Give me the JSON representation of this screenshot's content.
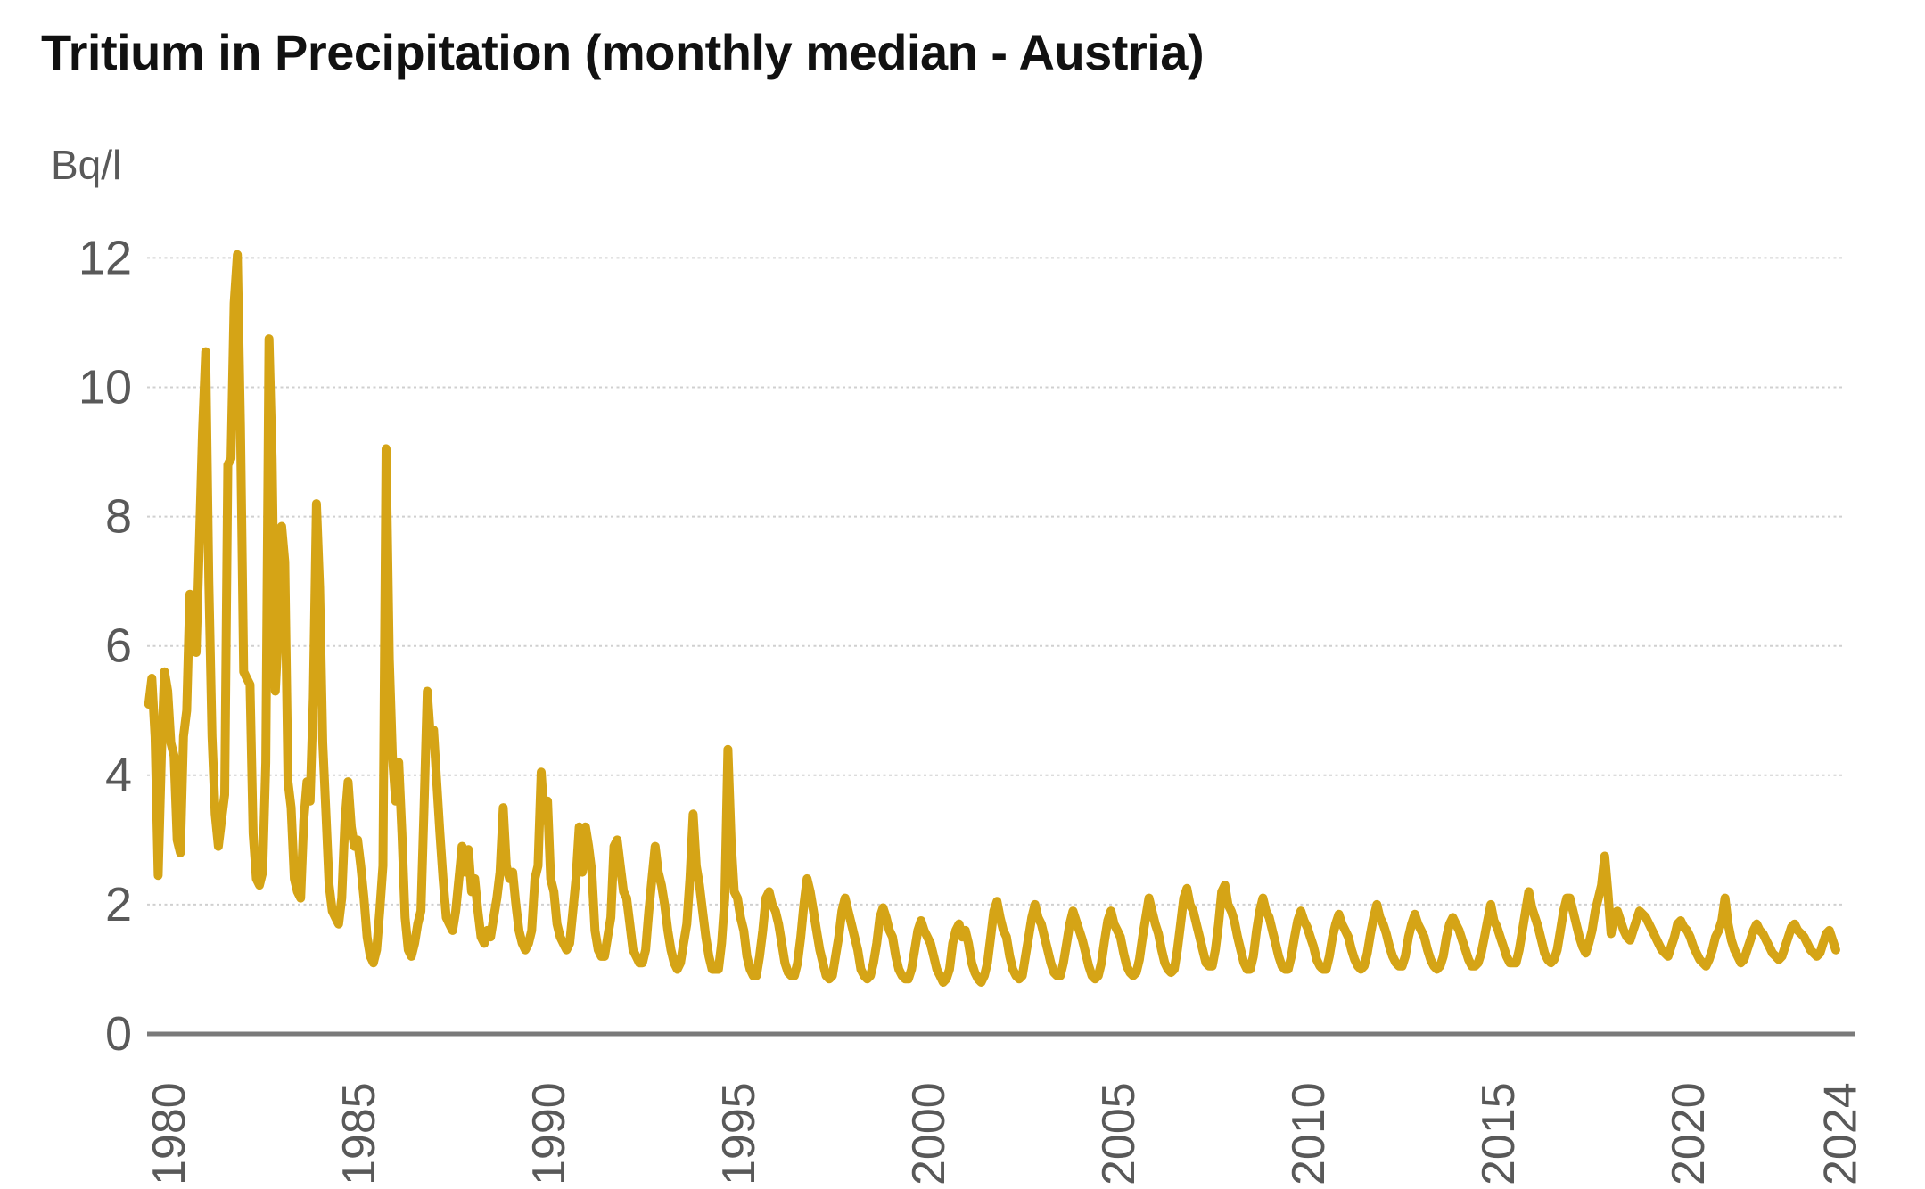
{
  "chart_data": {
    "type": "line",
    "title": "Tritium in Precipitation (monthly median - Austria)",
    "ylabel": "Bq/l",
    "xlabel": "",
    "legend": "none",
    "grid": "dotted horizontal gridlines",
    "x_tick_labels": [
      "1980",
      "1985",
      "1990",
      "1995",
      "2000",
      "2005",
      "2010",
      "2015",
      "2020",
      "2024"
    ],
    "y_tick_labels": [
      "0",
      "2",
      "4",
      "6",
      "8",
      "10",
      "12"
    ],
    "y_ticks": [
      0,
      2,
      4,
      6,
      8,
      10,
      12
    ],
    "ylim": [
      0,
      12.5
    ],
    "x_range": [
      "1980-01",
      "2024-06"
    ],
    "colors": {
      "line": "#D5A416",
      "grid": "#D0D0D0",
      "axis": "#7A7A7A",
      "tick_text": "#595959",
      "title_text": "#111111"
    },
    "series": [
      {
        "name": "Tritium monthly median (Bq/l)",
        "start_year": 1980,
        "values_by_year": {
          "1980": [
            5.1,
            5.5,
            4.6,
            2.45,
            4.3,
            5.6,
            5.3,
            4.5,
            4.3,
            3.0,
            2.8,
            4.6
          ],
          "1981": [
            5.0,
            6.8,
            6.6,
            5.9,
            7.6,
            9.3,
            10.55,
            7.0,
            4.6,
            3.4,
            2.9,
            3.3
          ],
          "1982": [
            3.7,
            8.8,
            8.9,
            11.3,
            12.05,
            9.4,
            5.6,
            5.5,
            5.4,
            3.1,
            2.4,
            2.3
          ],
          "1983": [
            2.5,
            4.2,
            10.75,
            8.9,
            5.3,
            6.3,
            7.85,
            7.3,
            3.9,
            3.5,
            2.4,
            2.2
          ],
          "1984": [
            2.1,
            3.3,
            3.9,
            3.6,
            5.2,
            8.2,
            6.9,
            4.5,
            3.4,
            2.3,
            1.9,
            1.8
          ],
          "1985": [
            1.7,
            2.1,
            3.3,
            3.9,
            3.2,
            2.9,
            3.0,
            2.6,
            2.1,
            1.5,
            1.2,
            1.1
          ],
          "1986": [
            1.3,
            1.9,
            2.6,
            9.05,
            5.8,
            4.3,
            3.6,
            4.2,
            3.1,
            1.8,
            1.3,
            1.2
          ],
          "1987": [
            1.4,
            1.7,
            1.9,
            3.5,
            5.3,
            4.6,
            4.7,
            3.9,
            3.1,
            2.4,
            1.8,
            1.7
          ],
          "1988": [
            1.6,
            1.9,
            2.4,
            2.9,
            2.5,
            2.85,
            2.2,
            2.4,
            1.9,
            1.5,
            1.4,
            1.6
          ],
          "1989": [
            1.5,
            1.8,
            2.1,
            2.5,
            3.5,
            2.6,
            2.4,
            2.5,
            2.0,
            1.6,
            1.4,
            1.3
          ],
          "1990": [
            1.4,
            1.6,
            2.4,
            2.6,
            4.05,
            3.3,
            3.6,
            2.4,
            2.2,
            1.7,
            1.5,
            1.4
          ],
          "1991": [
            1.3,
            1.4,
            1.9,
            2.4,
            3.2,
            2.5,
            3.2,
            2.9,
            2.5,
            1.6,
            1.3,
            1.2
          ],
          "1992": [
            1.2,
            1.5,
            1.8,
            2.9,
            3.0,
            2.6,
            2.2,
            2.1,
            1.7,
            1.3,
            1.2,
            1.1
          ],
          "1993": [
            1.1,
            1.3,
            1.9,
            2.4,
            2.9,
            2.5,
            2.3,
            2.0,
            1.6,
            1.3,
            1.1,
            1.0
          ],
          "1994": [
            1.1,
            1.4,
            1.7,
            2.4,
            3.4,
            2.6,
            2.3,
            1.9,
            1.5,
            1.2,
            1.0,
            1.0
          ],
          "1995": [
            1.0,
            1.4,
            2.1,
            4.4,
            3.0,
            2.2,
            2.1,
            1.8,
            1.6,
            1.2,
            1.0,
            0.9
          ],
          "1996": [
            0.9,
            1.2,
            1.6,
            2.1,
            2.2,
            2.0,
            1.9,
            1.7,
            1.4,
            1.1,
            0.95,
            0.9
          ],
          "1997": [
            0.9,
            1.1,
            1.5,
            2.0,
            2.4,
            2.2,
            1.9,
            1.6,
            1.3,
            1.1,
            0.9,
            0.85
          ],
          "1998": [
            0.9,
            1.2,
            1.5,
            1.9,
            2.1,
            1.9,
            1.7,
            1.5,
            1.3,
            1.0,
            0.9,
            0.85
          ],
          "1999": [
            0.9,
            1.1,
            1.4,
            1.8,
            1.95,
            1.8,
            1.6,
            1.5,
            1.2,
            1.0,
            0.9,
            0.85
          ],
          "2000": [
            0.85,
            1.0,
            1.3,
            1.6,
            1.75,
            1.6,
            1.5,
            1.4,
            1.2,
            1.0,
            0.9,
            0.8
          ],
          "2001": [
            0.85,
            1.0,
            1.4,
            1.6,
            1.7,
            1.5,
            1.6,
            1.4,
            1.1,
            0.95,
            0.85,
            0.8
          ],
          "2002": [
            0.9,
            1.1,
            1.5,
            1.9,
            2.05,
            1.8,
            1.6,
            1.5,
            1.2,
            1.0,
            0.9,
            0.85
          ],
          "2003": [
            0.9,
            1.2,
            1.5,
            1.8,
            2.0,
            1.8,
            1.7,
            1.5,
            1.3,
            1.1,
            0.95,
            0.9
          ],
          "2004": [
            0.9,
            1.1,
            1.4,
            1.7,
            1.9,
            1.75,
            1.6,
            1.45,
            1.25,
            1.05,
            0.9,
            0.85
          ],
          "2005": [
            0.9,
            1.1,
            1.45,
            1.75,
            1.9,
            1.7,
            1.6,
            1.5,
            1.25,
            1.05,
            0.95,
            0.9
          ],
          "2006": [
            0.95,
            1.15,
            1.5,
            1.8,
            2.1,
            1.9,
            1.7,
            1.55,
            1.3,
            1.1,
            1.0,
            0.95
          ],
          "2007": [
            1.0,
            1.3,
            1.7,
            2.1,
            2.25,
            2.0,
            1.9,
            1.7,
            1.5,
            1.3,
            1.1,
            1.05
          ],
          "2008": [
            1.05,
            1.3,
            1.7,
            2.2,
            2.3,
            2.0,
            1.9,
            1.75,
            1.5,
            1.3,
            1.1,
            1.0
          ],
          "2009": [
            1.0,
            1.2,
            1.6,
            1.9,
            2.1,
            1.9,
            1.8,
            1.6,
            1.4,
            1.2,
            1.05,
            1.0
          ],
          "2010": [
            1.0,
            1.2,
            1.5,
            1.75,
            1.9,
            1.75,
            1.65,
            1.5,
            1.35,
            1.15,
            1.05,
            1.0
          ],
          "2011": [
            1.0,
            1.2,
            1.5,
            1.7,
            1.85,
            1.7,
            1.6,
            1.5,
            1.3,
            1.15,
            1.05,
            1.0
          ],
          "2012": [
            1.05,
            1.25,
            1.55,
            1.8,
            2.0,
            1.8,
            1.7,
            1.55,
            1.35,
            1.2,
            1.1,
            1.05
          ],
          "2013": [
            1.05,
            1.2,
            1.5,
            1.7,
            1.85,
            1.7,
            1.6,
            1.5,
            1.3,
            1.15,
            1.05,
            1.0
          ],
          "2014": [
            1.05,
            1.2,
            1.5,
            1.7,
            1.8,
            1.7,
            1.6,
            1.45,
            1.3,
            1.15,
            1.05,
            1.05
          ],
          "2015": [
            1.1,
            1.25,
            1.5,
            1.75,
            2.0,
            1.75,
            1.65,
            1.5,
            1.35,
            1.2,
            1.1,
            1.1
          ],
          "2016": [
            1.1,
            1.3,
            1.6,
            1.9,
            2.2,
            1.95,
            1.8,
            1.65,
            1.45,
            1.25,
            1.15,
            1.1
          ],
          "2017": [
            1.15,
            1.3,
            1.6,
            1.9,
            2.1,
            2.1,
            1.9,
            1.7,
            1.5,
            1.35,
            1.25,
            1.4
          ],
          "2018": [
            1.6,
            1.9,
            2.1,
            2.3,
            2.75,
            2.2,
            1.55,
            1.85,
            1.9,
            1.75,
            1.6,
            1.5
          ],
          "2019": [
            1.45,
            1.6,
            1.75,
            1.9,
            1.85,
            1.8,
            1.7,
            1.6,
            1.5,
            1.4,
            1.3,
            1.25
          ],
          "2020": [
            1.2,
            1.35,
            1.5,
            1.7,
            1.75,
            1.65,
            1.6,
            1.5,
            1.35,
            1.25,
            1.15,
            1.1
          ],
          "2021": [
            1.05,
            1.15,
            1.3,
            1.5,
            1.6,
            1.75,
            2.1,
            1.7,
            1.45,
            1.3,
            1.2,
            1.1
          ],
          "2022": [
            1.15,
            1.3,
            1.45,
            1.6,
            1.7,
            1.6,
            1.55,
            1.45,
            1.35,
            1.25,
            1.2,
            1.15
          ],
          "2023": [
            1.2,
            1.35,
            1.5,
            1.65,
            1.7,
            1.6,
            1.55,
            1.5,
            1.4,
            1.3,
            1.25,
            1.2
          ],
          "2024": [
            1.25,
            1.4,
            1.55,
            1.6,
            1.45,
            1.3
          ]
        }
      }
    ]
  }
}
